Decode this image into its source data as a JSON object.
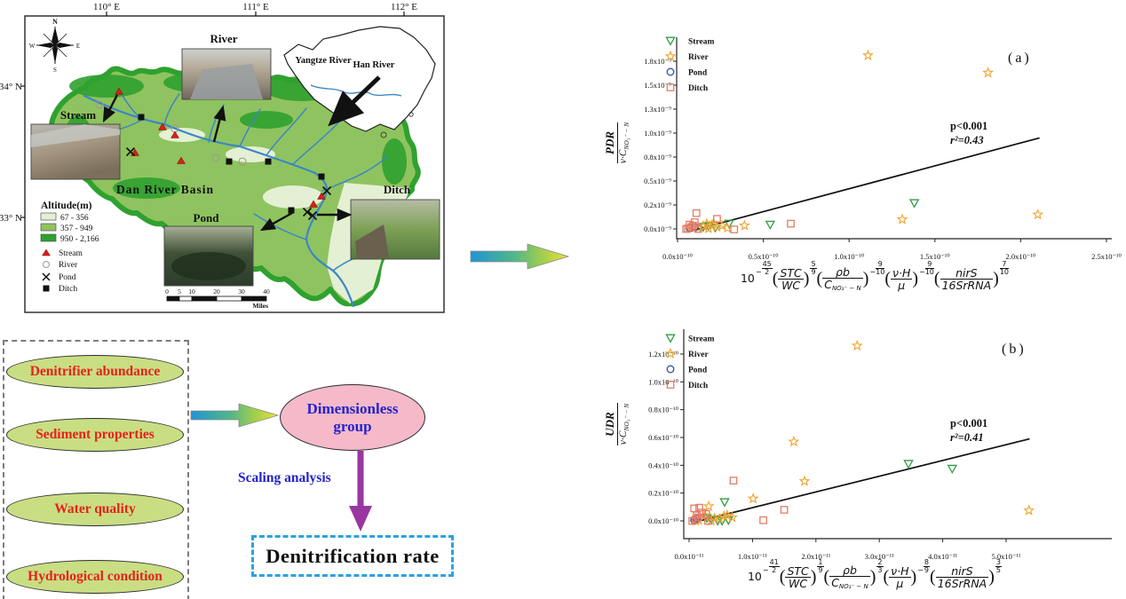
{
  "map": {
    "lon_ticks": [
      "110° E",
      "111° E",
      "112° E"
    ],
    "lat_ticks": [
      "34° N",
      "33° N"
    ],
    "compass": {
      "n": "N",
      "e": "E",
      "s": "S",
      "w": "W"
    },
    "inset_labels": {
      "yangtze": "Yangtze River",
      "han": "Han River"
    },
    "basin_label": "Dan River Basin",
    "photos": {
      "river": "River",
      "stream": "Stream",
      "pond": "Pond",
      "ditch": "Ditch"
    },
    "legend": {
      "title": "Altitude(m)",
      "altitude": [
        {
          "label": "67 - 356",
          "color": "#e4f0d4"
        },
        {
          "label": "357 - 949",
          "color": "#8fc35f"
        },
        {
          "label": "950 - 2,166",
          "color": "#2fa12f"
        }
      ],
      "sites": [
        {
          "label": "Stream"
        },
        {
          "label": "River"
        },
        {
          "label": "Pond"
        },
        {
          "label": "Ditch"
        }
      ]
    },
    "scalebar": {
      "labels": [
        "0",
        "5",
        "10",
        "20",
        "30",
        "40"
      ],
      "unit": "Miles"
    }
  },
  "flow": {
    "inputs": [
      "Denitrifier abundance",
      "Sediment properties",
      "Water quality",
      "Hydrological condition"
    ],
    "dimensionless": "Dimensionless group",
    "scaling": "Scaling analysis",
    "output": "Denitrification rate"
  },
  "chart_data": [
    {
      "id": "a",
      "type": "scatter",
      "panel_label": "(a)",
      "ylabel": {
        "numerator": "PDR",
        "den_base": "ν·C",
        "den_sub": "NO₃⁻ − N"
      },
      "xlabel_formula": {
        "lead_base": "10",
        "lead_exp": {
          "neg": true,
          "n": "45",
          "d": "2"
        },
        "factors": [
          {
            "num": "STC",
            "den": "WC",
            "den_sub": "",
            "exp": {
              "neg": false,
              "n": "5",
              "d": "9"
            }
          },
          {
            "num": "ρb",
            "den": "C",
            "den_sub": "NO₃⁻ − N",
            "exp": {
              "neg": true,
              "n": "9",
              "d": "10"
            }
          },
          {
            "num": "ν·H",
            "den": "μ",
            "den_sub": "",
            "exp": {
              "neg": true,
              "n": "9",
              "d": "10"
            }
          },
          {
            "num": "nirS",
            "den": "16SrRNA",
            "den_sub": "",
            "exp": {
              "neg": false,
              "n": "7",
              "d": "10"
            }
          }
        ]
      },
      "x_ticks": {
        "values": [
          0,
          0.5,
          1.0,
          1.5,
          2.0,
          2.5
        ],
        "labels": [
          "0.0x10⁻¹⁰",
          "0.5x10⁻¹⁰",
          "1.0x10⁻¹⁰",
          "1.5x10⁻¹⁰",
          "2.0x10⁻¹⁰",
          "2.5x10⁻¹⁰"
        ]
      },
      "y_ticks": {
        "values": [
          0,
          0.25,
          0.5,
          0.75,
          1.0,
          1.25,
          1.5,
          1.75
        ],
        "labels": [
          "0.0x10⁻⁹",
          "0.2x10⁻⁹",
          "0.5x10⁻⁹",
          "0.8x10⁻⁹",
          "1.0x10⁻⁹",
          "1.3x10⁻⁹",
          "1.5x10⁻⁹",
          "1.8x10⁻⁹"
        ]
      },
      "annotation": [
        "p<0.001",
        "r²=0.43"
      ],
      "fit_line": {
        "x": [
          0.08,
          2.11
        ],
        "y": [
          -0.02,
          0.95
        ]
      },
      "series": [
        {
          "name": "Stream",
          "marker": "triangle",
          "color": "#2f9e44",
          "points": [
            [
              1.38,
              0.27
            ],
            [
              0.54,
              0.045
            ],
            [
              0.3,
              0.055
            ],
            [
              0.18,
              0.03
            ],
            [
              0.22,
              0.012
            ],
            [
              0.15,
              0.02
            ]
          ]
        },
        {
          "name": "River",
          "marker": "star",
          "color": "#f0a32e",
          "points": [
            [
              1.11,
              1.81
            ],
            [
              1.81,
              1.63
            ],
            [
              2.1,
              0.15
            ],
            [
              1.31,
              0.1
            ],
            [
              0.39,
              0.035
            ],
            [
              0.12,
              0.01
            ],
            [
              0.15,
              0.03
            ],
            [
              0.18,
              0.005
            ],
            [
              0.2,
              0.04
            ],
            [
              0.23,
              0.02
            ],
            [
              0.26,
              0.035
            ],
            [
              0.29,
              0.01
            ],
            [
              0.17,
              0.055
            ],
            [
              0.21,
              0.06
            ]
          ]
        },
        {
          "name": "Pond",
          "marker": "circle",
          "color": "#2b50a8",
          "points": [
            [
              0.07,
              0.01
            ],
            [
              0.1,
              0.02
            ]
          ]
        },
        {
          "name": "Ditch",
          "marker": "square",
          "color": "#e77b62",
          "points": [
            [
              0.11,
              0.165
            ],
            [
              0.1,
              0.07
            ],
            [
              0.23,
              0.105
            ],
            [
              0.33,
              -0.005
            ],
            [
              0.66,
              0.055
            ],
            [
              0.06,
              0.005
            ],
            [
              0.08,
              0.02
            ],
            [
              0.12,
              0.0
            ],
            [
              0.09,
              0.035
            ],
            [
              0.05,
              0.0
            ],
            [
              0.07,
              0.045
            ]
          ]
        }
      ]
    },
    {
      "id": "b",
      "type": "scatter",
      "panel_label": "(b)",
      "ylabel": {
        "numerator": "UDR",
        "den_base": "ν·C",
        "den_sub": "NO₃⁻ − N"
      },
      "xlabel_formula": {
        "lead_base": "10",
        "lead_exp": {
          "neg": true,
          "n": "41",
          "d": "2"
        },
        "factors": [
          {
            "num": "STC",
            "den": "WC",
            "den_sub": "",
            "exp": {
              "neg": false,
              "n": "1",
              "d": "9"
            }
          },
          {
            "num": "ρb",
            "den": "C",
            "den_sub": "NO₃⁻ − N",
            "exp": {
              "neg": false,
              "n": "2",
              "d": "3"
            }
          },
          {
            "num": "ν·H",
            "den": "μ",
            "den_sub": "",
            "exp": {
              "neg": true,
              "n": "8",
              "d": "9"
            }
          },
          {
            "num": "nirS",
            "den": "16SrRNA",
            "den_sub": "",
            "exp": {
              "neg": false,
              "n": "3",
              "d": "5"
            }
          }
        ]
      },
      "x_ticks": {
        "values": [
          0,
          1,
          2,
          3,
          4,
          5
        ],
        "labels": [
          "0.0x10⁻¹¹",
          "1.0x10⁻¹¹",
          "2.0x10⁻¹¹",
          "3.0x10⁻¹¹",
          "4.0x10⁻¹¹",
          "5.0x10⁻¹¹"
        ]
      },
      "y_ticks": {
        "values": [
          0,
          0.2,
          0.4,
          0.6,
          0.8,
          1.0,
          1.2
        ],
        "labels": [
          "0.0x10⁻¹⁰",
          "0.2x10⁻¹⁰",
          "0.4x10⁻¹⁰",
          "0.6x10⁻¹⁰",
          "0.8x10⁻¹⁰",
          "1.0x10⁻¹⁰",
          "1.2x10⁻¹⁰"
        ]
      },
      "annotation": [
        "p<0.001",
        "r²=0.41"
      ],
      "fit_line": {
        "x": [
          0.16,
          5.37
        ],
        "y": [
          0.0,
          0.59
        ]
      },
      "series": [
        {
          "name": "Stream",
          "marker": "triangle",
          "color": "#2f9e44",
          "points": [
            [
              3.46,
              0.41
            ],
            [
              4.15,
              0.375
            ],
            [
              0.56,
              0.135
            ],
            [
              0.52,
              0.0
            ],
            [
              0.62,
              0.005
            ],
            [
              0.35,
              0.01
            ],
            [
              0.28,
              0.02
            ],
            [
              0.45,
              0.0
            ]
          ]
        },
        {
          "name": "River",
          "marker": "star",
          "color": "#f0a32e",
          "points": [
            [
              2.65,
              1.26
            ],
            [
              1.65,
              0.57
            ],
            [
              1.82,
              0.285
            ],
            [
              1.01,
              0.16
            ],
            [
              5.36,
              0.075
            ],
            [
              0.31,
              0.105
            ],
            [
              0.25,
              0.04
            ],
            [
              0.4,
              0.02
            ],
            [
              0.55,
              0.035
            ],
            [
              0.68,
              0.025
            ],
            [
              0.15,
              0.005
            ],
            [
              0.35,
              0.0
            ],
            [
              0.48,
              0.015
            ],
            [
              0.6,
              0.04
            ],
            [
              0.1,
              0.0
            ]
          ]
        },
        {
          "name": "Pond",
          "marker": "circle",
          "color": "#2b50a8",
          "points": [
            [
              0.08,
              0.005
            ],
            [
              0.12,
              0.015
            ]
          ]
        },
        {
          "name": "Ditch",
          "marker": "square",
          "color": "#e77b62",
          "points": [
            [
              0.7,
              0.29
            ],
            [
              1.5,
              0.08
            ],
            [
              1.17,
              0.005
            ],
            [
              0.16,
              0.095
            ],
            [
              0.08,
              0.09
            ],
            [
              0.27,
              0.05
            ],
            [
              0.3,
              0.0
            ],
            [
              0.1,
              0.01
            ],
            [
              0.05,
              0.0
            ],
            [
              0.14,
              0.025
            ],
            [
              0.2,
              0.06
            ],
            [
              0.12,
              0.04
            ]
          ]
        }
      ]
    }
  ]
}
